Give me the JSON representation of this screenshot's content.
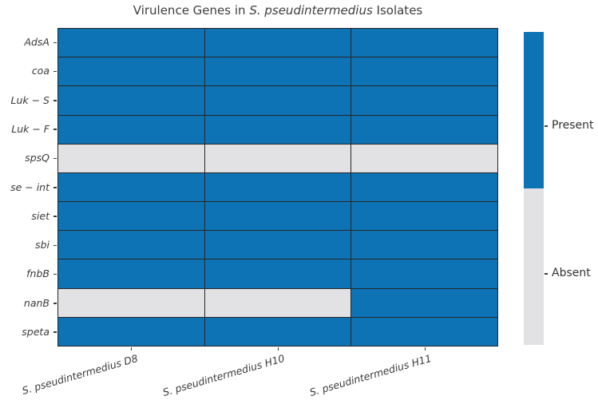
{
  "title": {
    "prefix": "Virulence Genes in ",
    "italic": "S. pseudintermedius",
    "suffix": " Isolates"
  },
  "legend": {
    "present_label": "Present",
    "absent_label": "Absent"
  },
  "colors": {
    "present": "#0d73b5",
    "absent": "#e2e2e4",
    "grid": "#262626",
    "text": "#3b3b3b"
  },
  "chart_data": {
    "type": "heatmap",
    "title": "Virulence Genes in S. pseudintermedius Isolates",
    "rows": [
      "AdsA",
      "coa",
      "Luk − S",
      "Luk − F",
      "spsQ",
      "se − int",
      "siet",
      "sbi",
      "fnbB",
      "nanB",
      "speta"
    ],
    "columns": [
      "S. pseudintermedius D8",
      "S. pseudintermedius H10",
      "S. pseudintermedius H11"
    ],
    "values": [
      [
        1,
        1,
        1
      ],
      [
        1,
        1,
        1
      ],
      [
        1,
        1,
        1
      ],
      [
        1,
        1,
        1
      ],
      [
        0,
        0,
        0
      ],
      [
        1,
        1,
        1
      ],
      [
        1,
        1,
        1
      ],
      [
        1,
        1,
        1
      ],
      [
        1,
        1,
        1
      ],
      [
        0,
        0,
        1
      ],
      [
        1,
        1,
        1
      ]
    ],
    "value_legend": {
      "1": "Present",
      "0": "Absent"
    },
    "legend_position": "right",
    "grid": true
  }
}
